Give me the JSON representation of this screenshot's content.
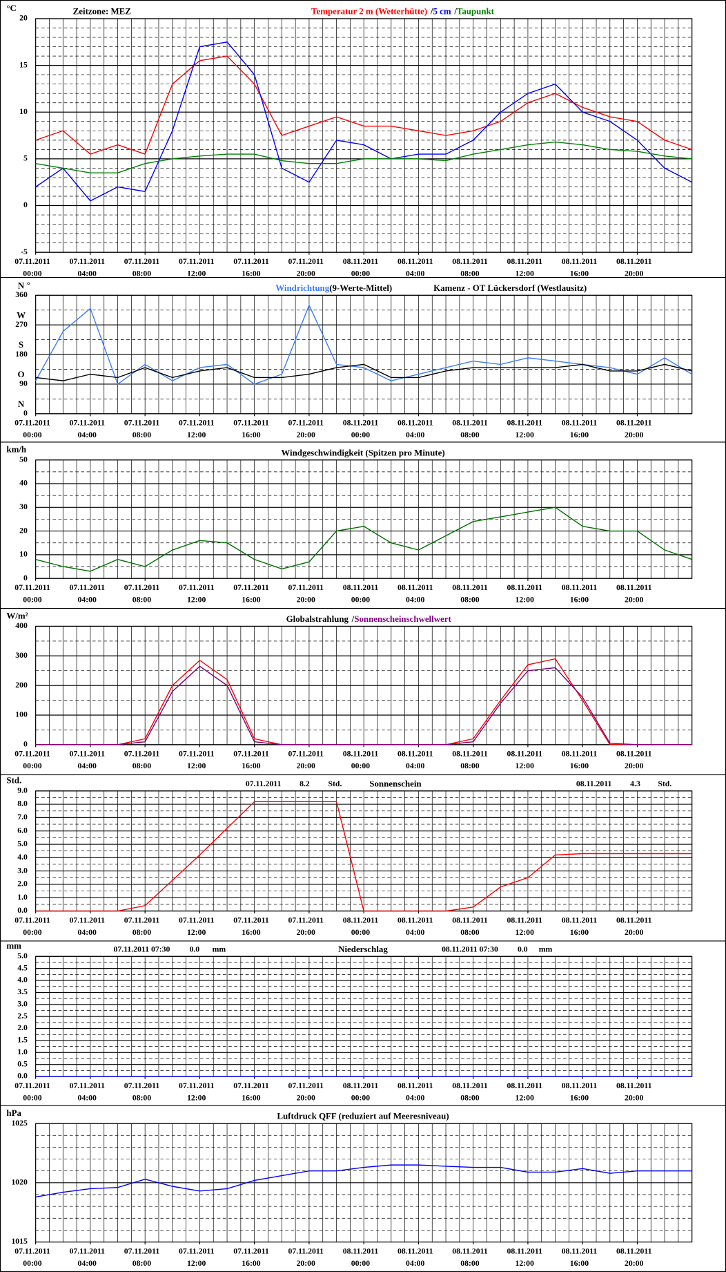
{
  "time_axis": {
    "xlim": [
      0,
      48
    ],
    "x": [
      0,
      2,
      4,
      6,
      8,
      10,
      12,
      14,
      16,
      18,
      20,
      22,
      24,
      26,
      28,
      30,
      32,
      34,
      36,
      38,
      40,
      42,
      44,
      46,
      48
    ],
    "xticks": [
      {
        "value": 0,
        "label": "07.11.2011"
      },
      {
        "value": 4,
        "label": "07.11.2011"
      },
      {
        "value": 8,
        "label": "07.11.2011"
      },
      {
        "value": 12,
        "label": "07.11.2011"
      },
      {
        "value": 16,
        "label": "07.11.2011"
      },
      {
        "value": 20,
        "label": "07.11.2011"
      },
      {
        "value": 24,
        "label": "08.11.2011"
      },
      {
        "value": 28,
        "label": "08.11.2011"
      },
      {
        "value": 32,
        "label": "08.11.2011"
      },
      {
        "value": 36,
        "label": "08.11.2011"
      },
      {
        "value": 40,
        "label": "08.11.2011"
      },
      {
        "value": 44,
        "label": "08.11.2011"
      }
    ],
    "xtick_times": [
      "00:00",
      "04:00",
      "08:00",
      "12:00",
      "16:00",
      "20:00",
      "00:00",
      "04:00",
      "08:00",
      "12:00",
      "16:00",
      "20:00"
    ],
    "minor_ticks": [
      0,
      1,
      2,
      3,
      4,
      5,
      6,
      7,
      8,
      9,
      10,
      11,
      12,
      13,
      14,
      15,
      16,
      17,
      18,
      19,
      20,
      21,
      22,
      23,
      24,
      25,
      26,
      27,
      28,
      29,
      30,
      31,
      32,
      33,
      34,
      35,
      36,
      37,
      38,
      39,
      40,
      41,
      42,
      43,
      44,
      45,
      46,
      47,
      48
    ]
  },
  "chart_data": [
    {
      "type": "line",
      "unit": "°C",
      "timezone": "Zeitzone: MEZ",
      "legend_separator": "/",
      "ylim": [
        -5,
        20
      ],
      "yticks": [
        20,
        15,
        10,
        5,
        0,
        -5
      ],
      "yminor": [
        -4,
        -3,
        -2,
        -1,
        1,
        2,
        3,
        4,
        6,
        7,
        8,
        9,
        11,
        12,
        13,
        14,
        16,
        17,
        18,
        19
      ],
      "series": [
        {
          "name": "Temperatur 2 m (Wetterhütte)",
          "color": "#ff0000",
          "values": [
            7,
            8,
            5.5,
            6.5,
            5.5,
            13,
            15.5,
            16,
            13,
            7.5,
            8.5,
            9.5,
            8.5,
            8.5,
            8,
            7.5,
            8,
            9,
            11,
            12,
            10.5,
            9.5,
            9,
            7,
            6
          ]
        },
        {
          "name": "5 cm",
          "color": "#0000ff",
          "values": [
            2,
            4,
            0.5,
            2,
            1.5,
            8,
            17,
            17.5,
            14,
            4,
            2.5,
            7,
            6.5,
            5,
            5.5,
            5.5,
            7,
            10,
            12,
            13,
            10,
            9,
            7,
            4,
            2.5
          ]
        },
        {
          "name": "Taupunkt",
          "color": "#008000",
          "values": [
            4.5,
            4,
            3.5,
            3.5,
            4.5,
            5,
            5.3,
            5.5,
            5.5,
            4.8,
            4.5,
            4.5,
            5,
            5,
            5,
            4.8,
            5.5,
            6,
            6.5,
            6.8,
            6.5,
            6,
            5.8,
            5.3,
            5
          ]
        }
      ]
    },
    {
      "type": "line",
      "unit": "°",
      "compass": [
        "N",
        "W",
        "S",
        "O",
        "N"
      ],
      "site": "Kamenz - OT Lückersdorf (Westlausitz)",
      "ylim": [
        0,
        360
      ],
      "yticks": [
        360,
        270,
        180,
        90,
        0
      ],
      "yminor": [
        45,
        135,
        225,
        315
      ],
      "series": [
        {
          "name": "Windrichtung",
          "color": "#3a7bff",
          "values": [
            100,
            250,
            320,
            90,
            150,
            100,
            140,
            150,
            90,
            120,
            330,
            150,
            140,
            100,
            120,
            140,
            160,
            150,
            170,
            160,
            150,
            140,
            120,
            170,
            120
          ]
        },
        {
          "name": "(9-Werte-Mittel)",
          "color": "#000000",
          "values": [
            110,
            100,
            120,
            110,
            140,
            110,
            130,
            140,
            110,
            110,
            120,
            140,
            150,
            110,
            110,
            130,
            140,
            140,
            140,
            140,
            150,
            130,
            130,
            150,
            130
          ]
        }
      ]
    },
    {
      "type": "line",
      "unit": "km/h",
      "title": "Windgeschwindigkeit (Spitzen pro Minute)",
      "ylim": [
        0,
        50
      ],
      "yticks": [
        50,
        40,
        30,
        20,
        10,
        0
      ],
      "yminor": [
        5,
        15,
        25,
        35,
        45
      ],
      "series": [
        {
          "name": "Windgeschwindigkeit",
          "color": "#007000",
          "values": [
            8,
            5,
            3,
            8,
            5,
            12,
            16,
            15,
            8,
            4,
            7,
            20,
            22,
            15,
            12,
            18,
            24,
            26,
            28,
            30,
            22,
            20,
            20,
            12,
            8
          ]
        }
      ]
    },
    {
      "type": "line",
      "unit": "W/m²",
      "legend_separator": "/",
      "ylim": [
        0,
        400
      ],
      "yticks": [
        400,
        300,
        200,
        100,
        0
      ],
      "yminor": [
        50,
        150,
        250,
        350
      ],
      "series": [
        {
          "name": "Globalstrahlung",
          "color": "#ff0000",
          "legend_color": "#000000",
          "values": [
            0,
            0,
            0,
            0,
            20,
            200,
            285,
            220,
            20,
            0,
            0,
            0,
            0,
            0,
            0,
            0,
            20,
            150,
            270,
            290,
            150,
            0,
            0,
            0,
            0
          ]
        },
        {
          "name": "Sonnenscheinschwellwert",
          "color": "#800080",
          "values": [
            0,
            0,
            0,
            0,
            10,
            180,
            265,
            200,
            10,
            0,
            0,
            0,
            0,
            0,
            0,
            0,
            10,
            140,
            250,
            260,
            160,
            5,
            0,
            0,
            0
          ]
        }
      ]
    },
    {
      "type": "line",
      "unit": "Std.",
      "title": "Sonnenschein",
      "day_totals": [
        {
          "date": "07.11.2011",
          "value": 8.2,
          "unit": "Std."
        },
        {
          "date": "08.11.2011",
          "value": 4.3,
          "unit": "Std."
        }
      ],
      "ylim": [
        0,
        9
      ],
      "yticks": [
        {
          "value": 9,
          "label": "9.0"
        },
        {
          "value": 8,
          "label": "8.0"
        },
        {
          "value": 7,
          "label": "7.0"
        },
        {
          "value": 6,
          "label": "6.0"
        },
        {
          "value": 5,
          "label": "5.0"
        },
        {
          "value": 4,
          "label": "4.0"
        },
        {
          "value": 3,
          "label": "3.0"
        },
        {
          "value": 2,
          "label": "2.0"
        },
        {
          "value": 1,
          "label": "1.0"
        },
        {
          "value": 0,
          "label": "0.0"
        }
      ],
      "yminor": [
        0.5,
        1.5,
        2.5,
        3.5,
        4.5,
        5.5,
        6.5,
        7.5,
        8.5
      ],
      "series": [
        {
          "name": "Sonnenschein",
          "color": "#ff0000",
          "values": [
            0,
            0,
            0,
            0,
            0.4,
            2.3,
            4.2,
            6.2,
            8.2,
            8.2,
            8.2,
            8.2,
            0,
            0,
            0,
            0,
            0.3,
            1.8,
            2.5,
            4.2,
            4.3,
            4.3,
            4.3,
            4.3,
            4.3
          ]
        }
      ]
    },
    {
      "type": "line",
      "unit": "mm",
      "title": "Niederschlag",
      "day_totals": [
        {
          "date": "07.11.2011 07:30",
          "value": 0,
          "label": "0.0",
          "unit": "mm"
        },
        {
          "date": "08.11.2011 07:30",
          "value": 0,
          "label": "0.0",
          "unit": "mm"
        }
      ],
      "ylim": [
        0,
        5
      ],
      "yticks": [
        {
          "value": 5,
          "label": "5.0"
        },
        {
          "value": 4.5,
          "label": "4.5"
        },
        {
          "value": 4,
          "label": "4.0"
        },
        {
          "value": 3.5,
          "label": "3.5"
        },
        {
          "value": 3,
          "label": "3.0"
        },
        {
          "value": 2.5,
          "label": "2.5"
        },
        {
          "value": 2,
          "label": "2.0"
        },
        {
          "value": 1.5,
          "label": "1.5"
        },
        {
          "value": 1,
          "label": "1.0"
        },
        {
          "value": 0.5,
          "label": "0.5"
        },
        {
          "value": 0,
          "label": "0.0"
        }
      ],
      "yminor": [
        0.25,
        0.75,
        1.25,
        1.75,
        2.25,
        2.75,
        3.25,
        3.75,
        4.25,
        4.75
      ],
      "series": [
        {
          "name": "Niederschlag",
          "color": "#0000ff",
          "values": [
            0,
            0,
            0,
            0,
            0,
            0,
            0,
            0,
            0,
            0,
            0,
            0,
            0,
            0,
            0,
            0,
            0,
            0,
            0,
            0,
            0,
            0,
            0,
            0,
            0
          ]
        }
      ]
    },
    {
      "type": "line",
      "unit": "hPa",
      "title": "Luftdruck QFF (reduziert auf Meeresniveau)",
      "ylim": [
        1015,
        1025
      ],
      "yticks": [
        1025,
        1020,
        1015
      ],
      "yminor": [
        1016,
        1017,
        1018,
        1019,
        1021,
        1022,
        1023,
        1024
      ],
      "series": [
        {
          "name": "Luftdruck",
          "color": "#0000ff",
          "values": [
            1018.8,
            1019.2,
            1019.5,
            1019.6,
            1020.3,
            1019.7,
            1019.3,
            1019.5,
            1020.2,
            1020.6,
            1021,
            1021,
            1021.3,
            1021.5,
            1021.5,
            1021.4,
            1021.3,
            1021.3,
            1020.9,
            1020.9,
            1021.2,
            1020.8,
            1021,
            1021,
            1021
          ]
        }
      ]
    }
  ]
}
